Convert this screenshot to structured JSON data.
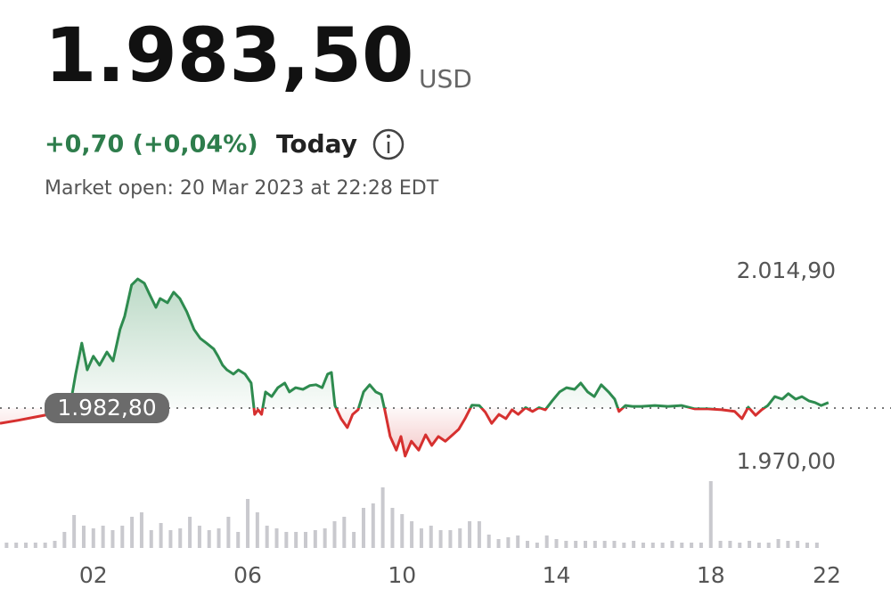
{
  "header": {
    "price": "1.983,50",
    "currency": "USD",
    "change": "+0,70 (+0,04%)",
    "period": "Today",
    "status": "Market open: 20 Mar 2023 at 22:28 EDT"
  },
  "chart_data": {
    "type": "line",
    "baseline": {
      "value": 1982.8,
      "label": "1.982,80"
    },
    "x": [
      -0.42,
      0.04,
      0.5,
      0.85,
      1.19,
      1.42,
      1.54,
      1.7,
      1.84,
      2.0,
      2.16,
      2.35,
      2.51,
      2.69,
      2.81,
      2.99,
      3.15,
      3.32,
      3.45,
      3.62,
      3.73,
      3.92,
      4.08,
      4.24,
      4.42,
      4.61,
      4.77,
      4.93,
      5.12,
      5.23,
      5.35,
      5.46,
      5.63,
      5.76,
      5.93,
      6.09,
      6.18,
      6.27,
      6.36,
      6.46,
      6.62,
      6.78,
      6.96,
      7.08,
      7.24,
      7.43,
      7.61,
      7.77,
      7.93,
      8.07,
      8.17,
      8.26,
      8.42,
      8.58,
      8.72,
      8.86,
      9.0,
      9.16,
      9.32,
      9.46,
      9.55,
      9.69,
      9.85,
      9.97,
      10.08,
      10.24,
      10.43,
      10.61,
      10.77,
      10.94,
      11.12,
      11.31,
      11.47,
      11.63,
      11.81,
      12.0,
      12.16,
      12.32,
      12.51,
      12.69,
      12.85,
      13.01,
      13.2,
      13.38,
      13.55,
      13.71,
      13.89,
      14.08,
      14.26,
      14.47,
      14.63,
      14.81,
      14.98,
      15.16,
      15.35,
      15.51,
      15.62,
      15.79,
      15.97,
      16.2,
      16.55,
      16.89,
      17.24,
      17.59,
      17.93,
      18.28,
      18.62,
      18.81,
      18.97,
      19.16,
      19.32,
      19.48,
      19.66,
      19.85,
      20.01,
      20.2,
      20.36,
      20.54,
      20.7,
      20.86,
      21.05
    ],
    "series": [
      {
        "name": "Price",
        "color_up": "#2e8b4f",
        "color_down": "#d6302f",
        "values": [
          1979.2,
          1979.9,
          1980.7,
          1981.3,
          1982.0,
          1984.5,
          1990.8,
          1998.1,
          1991.8,
          1995.0,
          1992.9,
          1996.0,
          1993.9,
          2001.3,
          2004.4,
          2011.8,
          2013.2,
          2012.2,
          2009.7,
          2006.5,
          2008.6,
          2007.6,
          2010.1,
          2008.6,
          2005.5,
          2001.3,
          1999.2,
          1998.1,
          1996.7,
          1995.0,
          1992.9,
          1991.8,
          1990.8,
          1991.8,
          1990.8,
          1988.7,
          1981.3,
          1982.4,
          1981.3,
          1986.6,
          1985.5,
          1987.6,
          1988.7,
          1986.6,
          1987.6,
          1987.2,
          1988.1,
          1988.3,
          1987.6,
          1990.8,
          1991.2,
          1983.4,
          1980.3,
          1978.2,
          1981.3,
          1982.4,
          1986.6,
          1988.3,
          1986.6,
          1986.0,
          1982.4,
          1976.1,
          1972.9,
          1976.1,
          1971.5,
          1975.0,
          1972.9,
          1976.5,
          1974.0,
          1976.1,
          1975.0,
          1976.5,
          1977.8,
          1980.3,
          1983.5,
          1983.4,
          1981.8,
          1979.2,
          1981.3,
          1980.3,
          1982.4,
          1981.3,
          1982.9,
          1982.0,
          1982.9,
          1982.4,
          1984.5,
          1986.6,
          1987.6,
          1987.2,
          1988.7,
          1986.6,
          1985.5,
          1988.3,
          1986.6,
          1984.9,
          1982.0,
          1983.4,
          1983.2,
          1983.2,
          1983.4,
          1983.2,
          1983.4,
          1982.6,
          1982.6,
          1982.4,
          1982.0,
          1980.3,
          1983.0,
          1981.1,
          1982.4,
          1983.4,
          1985.5,
          1984.9,
          1986.2,
          1984.9,
          1985.5,
          1984.5,
          1984.1,
          1983.4,
          1984.1
        ]
      }
    ],
    "volume": {
      "color": "#c9c9ce",
      "x": [
        -0.25,
        0,
        0.25,
        0.5,
        0.75,
        1,
        1.25,
        1.5,
        1.75,
        2,
        2.25,
        2.5,
        2.75,
        3,
        3.25,
        3.5,
        3.75,
        4,
        4.25,
        4.5,
        4.75,
        5,
        5.25,
        5.5,
        5.75,
        6,
        6.25,
        6.5,
        6.75,
        7,
        7.25,
        7.5,
        7.75,
        8,
        8.25,
        8.5,
        8.75,
        9,
        9.25,
        9.5,
        9.75,
        10,
        10.25,
        10.5,
        10.75,
        11,
        11.25,
        11.5,
        11.75,
        12,
        12.25,
        12.5,
        12.75,
        13,
        13.25,
        13.5,
        13.75,
        14,
        14.25,
        14.5,
        14.75,
        15,
        15.25,
        15.5,
        15.75,
        16,
        16.25,
        16.5,
        16.75,
        17,
        17.25,
        17.5,
        17.75,
        18,
        18.25,
        18.5,
        18.75,
        19,
        19.25,
        19.5,
        19.75,
        20,
        20.25,
        20.5,
        20.75
      ],
      "values": [
        6,
        6,
        6,
        6,
        6,
        8,
        18,
        37,
        25,
        22,
        25,
        20,
        25,
        35,
        40,
        20,
        28,
        20,
        22,
        35,
        25,
        20,
        22,
        35,
        18,
        55,
        40,
        25,
        22,
        18,
        18,
        18,
        20,
        22,
        30,
        35,
        18,
        45,
        50,
        68,
        45,
        38,
        30,
        22,
        25,
        20,
        20,
        22,
        30,
        30,
        15,
        10,
        12,
        14,
        8,
        6,
        14,
        10,
        8,
        8,
        8,
        8,
        8,
        8,
        6,
        8,
        6,
        6,
        6,
        8,
        6,
        6,
        6,
        75,
        8,
        8,
        6,
        8,
        6,
        6,
        10,
        8,
        8,
        6,
        6
      ]
    },
    "xlim": [
      -0.42,
      22.67
    ],
    "xticks": [
      {
        "value": 2,
        "label": "02"
      },
      {
        "value": 6,
        "label": "06"
      },
      {
        "value": 10,
        "label": "10"
      },
      {
        "value": 14,
        "label": "14"
      },
      {
        "value": 18,
        "label": "18"
      },
      {
        "value": 22,
        "label": "22"
      }
    ],
    "ylim": [
      1970,
      2014.9
    ],
    "yticks": [
      {
        "value": 2014.9,
        "label": "2.014,90"
      },
      {
        "value": 1970,
        "label": "1.970,00"
      }
    ],
    "grid": false
  }
}
